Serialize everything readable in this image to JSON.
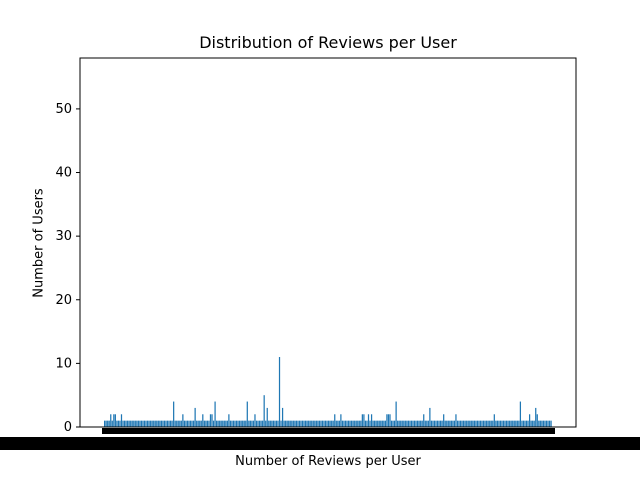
{
  "chart_data": {
    "type": "bar",
    "title": "Distribution of Reviews per User",
    "xlabel": "Number of Reviews per User",
    "ylabel": "Number of Users",
    "ylim": [
      0,
      58
    ],
    "yticks": [
      0,
      10,
      20,
      30,
      40,
      50
    ],
    "bar_color": "#1f77b4",
    "grid": false,
    "x_tick_labels_overlapping": true,
    "categories_note": "Roughly 250 integer review counts; tick labels overlap into an unreadable band",
    "values": [
      1,
      1,
      1,
      1,
      2,
      1,
      2,
      2,
      1,
      1,
      1,
      2,
      1,
      1,
      1,
      1,
      1,
      1,
      1,
      1,
      1,
      1,
      1,
      1,
      1,
      1,
      1,
      1,
      1,
      1,
      1,
      1,
      1,
      1,
      1,
      1,
      1,
      1,
      1,
      1,
      1,
      1,
      1,
      1,
      1,
      4,
      1,
      1,
      1,
      1,
      1,
      2,
      1,
      1,
      1,
      1,
      1,
      1,
      1,
      3,
      1,
      1,
      1,
      1,
      2,
      1,
      1,
      1,
      1,
      2,
      2,
      1,
      4,
      1,
      1,
      1,
      1,
      1,
      1,
      1,
      1,
      2,
      1,
      1,
      1,
      1,
      1,
      1,
      1,
      1,
      1,
      1,
      1,
      4,
      1,
      1,
      1,
      1,
      2,
      1,
      1,
      1,
      1,
      1,
      5,
      1,
      3,
      1,
      1,
      1,
      1,
      1,
      1,
      1,
      11,
      1,
      3,
      1,
      1,
      1,
      1,
      1,
      1,
      1,
      1,
      1,
      1,
      1,
      1,
      1,
      1,
      1,
      1,
      1,
      1,
      1,
      1,
      1,
      1,
      1,
      1,
      1,
      1,
      1,
      1,
      1,
      1,
      1,
      1,
      1,
      2,
      1,
      1,
      1,
      2,
      1,
      1,
      1,
      1,
      1,
      1,
      1,
      1,
      1,
      1,
      1,
      1,
      1,
      2,
      2,
      1,
      1,
      2,
      1,
      2,
      1,
      1,
      1,
      1,
      1,
      1,
      1,
      1,
      1,
      2,
      2,
      2,
      1,
      1,
      1,
      4,
      1,
      1,
      1,
      1,
      1,
      1,
      1,
      1,
      1,
      1,
      1,
      1,
      1,
      1,
      1,
      1,
      1,
      2,
      1,
      1,
      1,
      3,
      1,
      1,
      1,
      1,
      1,
      1,
      1,
      1,
      2,
      1,
      1,
      1,
      1,
      1,
      1,
      1,
      2,
      1,
      1,
      1,
      1,
      1,
      1,
      1,
      1,
      1,
      1,
      1,
      1,
      1,
      1,
      1,
      1,
      1,
      1,
      1,
      1,
      1,
      1,
      1,
      1,
      2,
      1,
      1,
      1,
      1,
      1,
      1,
      1,
      1,
      1,
      1,
      1,
      1,
      1,
      1,
      1,
      1,
      4,
      1,
      1,
      1,
      1,
      1,
      2,
      1,
      1,
      1,
      3,
      2,
      1,
      1,
      1,
      1,
      1,
      1,
      1,
      1,
      1
    ]
  }
}
